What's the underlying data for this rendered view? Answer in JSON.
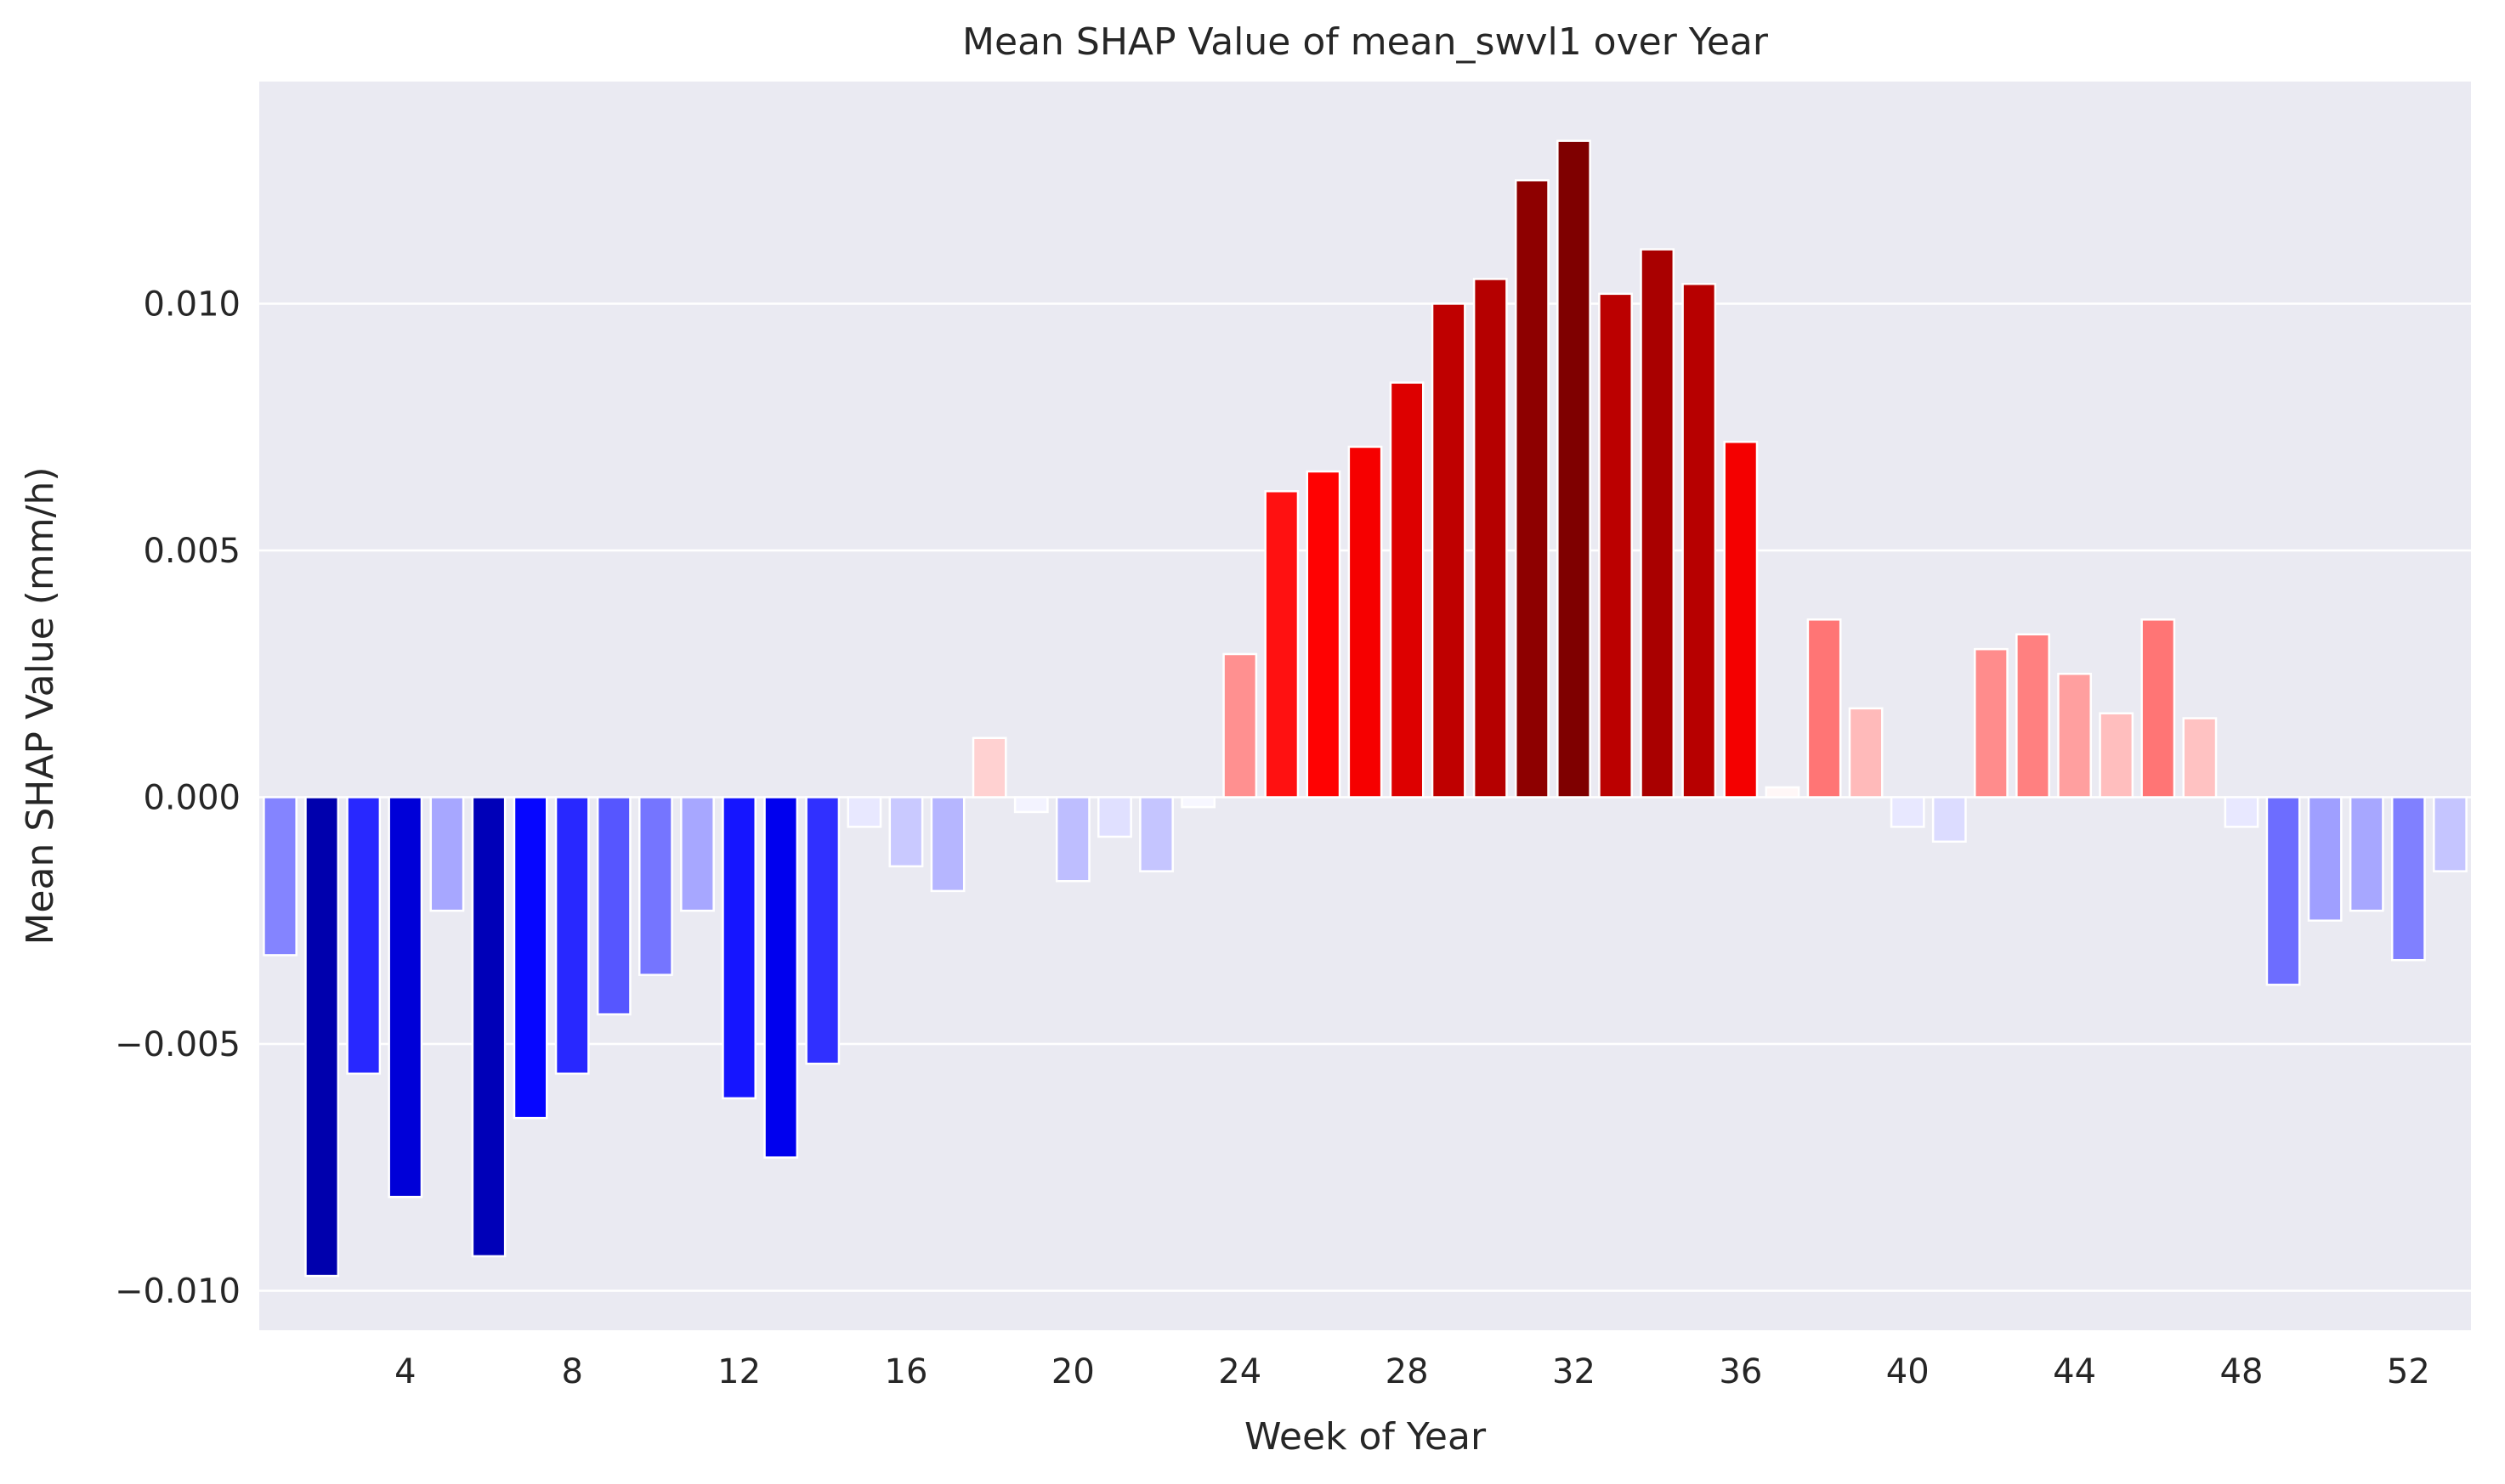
{
  "chart_data": {
    "type": "bar",
    "title": "Mean SHAP Value of mean_swvl1 over Year",
    "xlabel": "Week of Year",
    "ylabel": "Mean SHAP Value (mm/h)",
    "ylim": [
      -0.0108,
      0.0145
    ],
    "grid": true,
    "legend": "none",
    "x_tick_labels": [
      "4",
      "8",
      "12",
      "16",
      "20",
      "24",
      "28",
      "32",
      "36",
      "40",
      "44",
      "48",
      "52"
    ],
    "y_tick_values": [
      -0.01,
      -0.005,
      0.0,
      0.005,
      0.01
    ],
    "y_tick_labels": [
      "−0.010",
      "−0.005",
      "0.000",
      "0.005",
      "0.010"
    ],
    "categories": [
      1,
      2,
      3,
      4,
      5,
      6,
      7,
      8,
      9,
      10,
      11,
      12,
      13,
      14,
      15,
      16,
      17,
      18,
      19,
      20,
      21,
      22,
      23,
      24,
      25,
      26,
      27,
      28,
      29,
      30,
      31,
      32,
      33,
      34,
      35,
      36,
      37,
      38,
      39,
      40,
      41,
      42,
      43,
      44,
      45,
      46,
      47,
      48,
      49,
      50,
      51,
      52,
      53
    ],
    "values": [
      -0.0032,
      -0.0097,
      -0.0056,
      -0.0081,
      -0.0023,
      -0.0093,
      -0.0065,
      -0.0056,
      -0.0044,
      -0.0036,
      -0.0023,
      -0.0061,
      -0.0073,
      -0.0054,
      -0.0006,
      -0.0014,
      -0.0019,
      0.0012,
      -0.0003,
      -0.0017,
      -0.0008,
      -0.0015,
      -0.0002,
      0.0029,
      0.0062,
      0.0066,
      0.0071,
      0.0084,
      0.01,
      0.0105,
      0.0125,
      0.0133,
      0.0102,
      0.0111,
      0.0104,
      0.0072,
      0.0002,
      0.0036,
      0.0018,
      -0.0006,
      -0.0009,
      0.003,
      0.0033,
      0.0025,
      0.0017,
      0.0036,
      0.0016,
      -0.0006,
      -0.0038,
      -0.0025,
      -0.0023,
      -0.0033,
      -0.0015
    ],
    "colors": {
      "plot_background": "#eaeaf2",
      "grid": "#ffffff",
      "bar_edge": "#ffffff",
      "scale": "seismic",
      "scale_max_abs": 0.0133
    }
  }
}
